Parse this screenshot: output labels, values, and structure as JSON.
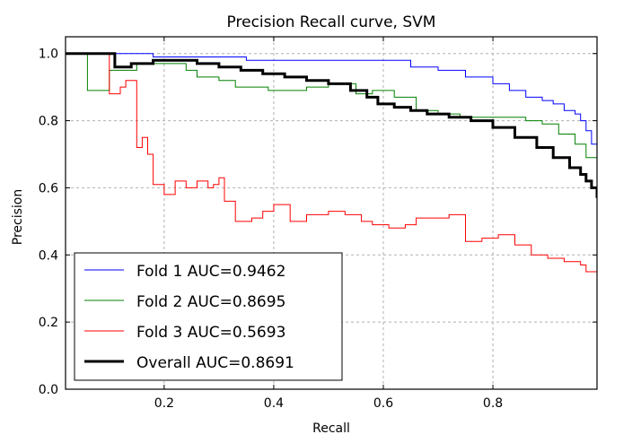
{
  "chart_data": {
    "type": "line",
    "title": "Precision Recall curve, SVM",
    "xlabel": "Recall",
    "ylabel": "Precision",
    "xlim": [
      0.02,
      0.99
    ],
    "ylim": [
      0.0,
      1.05
    ],
    "xticks": [
      0.2,
      0.4,
      0.6,
      0.8
    ],
    "xtick_labels": [
      "0.2",
      "0.4",
      "0.6",
      "0.8"
    ],
    "yticks": [
      0.0,
      0.2,
      0.4,
      0.6,
      0.8,
      1.0
    ],
    "ytick_labels": [
      "0.0",
      "0.2",
      "0.4",
      "0.6",
      "0.8",
      "1.0"
    ],
    "grid": true,
    "legend_position": "lower-left",
    "series": [
      {
        "name": "Fold 1 AUC=0.9462",
        "color": "#0000ff",
        "line_width": 1,
        "x": [
          0.02,
          0.12,
          0.18,
          0.25,
          0.35,
          0.45,
          0.55,
          0.62,
          0.65,
          0.7,
          0.75,
          0.8,
          0.83,
          0.86,
          0.89,
          0.91,
          0.93,
          0.95,
          0.96,
          0.97,
          0.98,
          0.99
        ],
        "y": [
          1.0,
          1.0,
          0.99,
          0.99,
          0.98,
          0.98,
          0.98,
          0.98,
          0.96,
          0.95,
          0.93,
          0.91,
          0.89,
          0.87,
          0.86,
          0.85,
          0.83,
          0.82,
          0.8,
          0.77,
          0.73,
          0.68
        ]
      },
      {
        "name": "Fold 2 AUC=0.8695",
        "color": "#008000",
        "line_width": 1,
        "x": [
          0.02,
          0.06,
          0.06,
          0.1,
          0.15,
          0.2,
          0.24,
          0.26,
          0.3,
          0.33,
          0.36,
          0.39,
          0.42,
          0.46,
          0.5,
          0.55,
          0.58,
          0.62,
          0.66,
          0.7,
          0.74,
          0.78,
          0.82,
          0.86,
          0.89,
          0.92,
          0.95,
          0.97,
          0.99
        ],
        "y": [
          1.0,
          1.0,
          0.89,
          0.95,
          0.97,
          0.97,
          0.95,
          0.93,
          0.92,
          0.9,
          0.9,
          0.89,
          0.89,
          0.9,
          0.91,
          0.88,
          0.89,
          0.87,
          0.83,
          0.82,
          0.81,
          0.81,
          0.81,
          0.8,
          0.79,
          0.76,
          0.73,
          0.69,
          0.64
        ]
      },
      {
        "name": "Fold 3 AUC=0.5693",
        "color": "#ff0000",
        "line_width": 1,
        "x": [
          0.02,
          0.1,
          0.1,
          0.12,
          0.13,
          0.15,
          0.15,
          0.16,
          0.17,
          0.18,
          0.2,
          0.22,
          0.24,
          0.26,
          0.28,
          0.29,
          0.3,
          0.31,
          0.33,
          0.36,
          0.38,
          0.4,
          0.43,
          0.46,
          0.5,
          0.53,
          0.56,
          0.58,
          0.61,
          0.64,
          0.66,
          0.69,
          0.72,
          0.75,
          0.78,
          0.81,
          0.84,
          0.87,
          0.9,
          0.93,
          0.96,
          0.97,
          0.99
        ],
        "y": [
          1.0,
          1.0,
          0.88,
          0.9,
          0.92,
          0.91,
          0.72,
          0.75,
          0.7,
          0.61,
          0.58,
          0.62,
          0.6,
          0.62,
          0.6,
          0.61,
          0.63,
          0.56,
          0.5,
          0.51,
          0.53,
          0.55,
          0.5,
          0.52,
          0.53,
          0.52,
          0.5,
          0.49,
          0.48,
          0.49,
          0.51,
          0.51,
          0.52,
          0.44,
          0.45,
          0.46,
          0.43,
          0.4,
          0.39,
          0.38,
          0.37,
          0.35,
          0.34
        ]
      },
      {
        "name": "Overall AUC=0.8691",
        "color": "#000000",
        "line_width": 3,
        "x": [
          0.02,
          0.11,
          0.11,
          0.14,
          0.18,
          0.22,
          0.26,
          0.3,
          0.34,
          0.38,
          0.42,
          0.46,
          0.5,
          0.54,
          0.57,
          0.59,
          0.62,
          0.65,
          0.68,
          0.72,
          0.76,
          0.8,
          0.84,
          0.88,
          0.91,
          0.94,
          0.96,
          0.97,
          0.98,
          0.99
        ],
        "y": [
          1.0,
          1.0,
          0.96,
          0.97,
          0.98,
          0.98,
          0.97,
          0.96,
          0.95,
          0.94,
          0.93,
          0.92,
          0.91,
          0.89,
          0.87,
          0.85,
          0.84,
          0.83,
          0.82,
          0.81,
          0.8,
          0.78,
          0.75,
          0.72,
          0.69,
          0.66,
          0.64,
          0.62,
          0.6,
          0.57
        ]
      }
    ]
  }
}
